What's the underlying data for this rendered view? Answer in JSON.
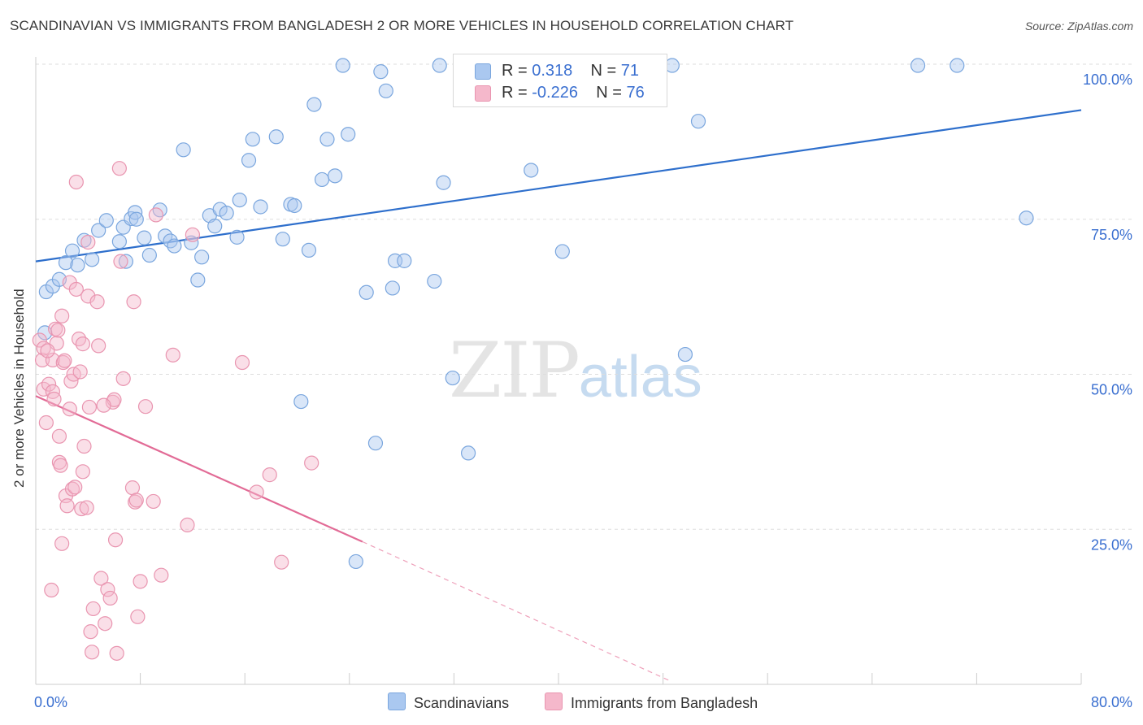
{
  "title": "SCANDINAVIAN VS IMMIGRANTS FROM BANGLADESH 2 OR MORE VEHICLES IN HOUSEHOLD CORRELATION CHART",
  "source": "Source: ZipAtlas.com",
  "watermark": {
    "zip": "ZIP",
    "atlas": "atlas"
  },
  "legend_top": [
    {
      "r_label": "R = ",
      "r_value": "0.318",
      "n_label": "N = ",
      "n_value": "71",
      "color": "#aac8f0"
    },
    {
      "r_label": "R = ",
      "r_value": "-0.226",
      "n_label": "N = ",
      "n_value": "76",
      "color": "#f5b8cb"
    }
  ],
  "legend_bottom": [
    {
      "label": "Scandinavians",
      "color": "#aac8f0"
    },
    {
      "label": "Immigrants from Bangladesh",
      "color": "#f5b8cb"
    }
  ],
  "chart_data": {
    "type": "scatter",
    "title": "SCANDINAVIAN VS IMMIGRANTS FROM BANGLADESH 2 OR MORE VEHICLES IN HOUSEHOLD CORRELATION CHART",
    "xlabel": "",
    "ylabel": "2 or more Vehicles in Household",
    "xlim": [
      0,
      80
    ],
    "ylim": [
      0,
      102
    ],
    "x_tick_labels": [
      "0.0%",
      "80.0%"
    ],
    "y_tick_labels": [
      "100.0%",
      "75.0%",
      "50.0%",
      "25.0%"
    ],
    "y_ticks": [
      100,
      75,
      50,
      25
    ],
    "grid": true,
    "legend_position": "bottom",
    "series": [
      {
        "name": "Scandinavians",
        "color": "#aac8f0",
        "stroke": "#7aa6de",
        "trend": {
          "x": [
            0,
            80
          ],
          "y": [
            68.2,
            92.6
          ],
          "color": "#2e6fcc"
        },
        "points": [
          [
            0.7,
            56.7
          ],
          [
            0.8,
            63.3
          ],
          [
            1.3,
            64.2
          ],
          [
            1.8,
            65.3
          ],
          [
            2.3,
            68.0
          ],
          [
            2.8,
            69.9
          ],
          [
            3.2,
            67.6
          ],
          [
            3.7,
            71.6
          ],
          [
            4.3,
            68.5
          ],
          [
            4.8,
            73.2
          ],
          [
            5.4,
            74.8
          ],
          [
            6.4,
            71.4
          ],
          [
            6.9,
            68.2
          ],
          [
            6.7,
            73.7
          ],
          [
            7.3,
            75.1
          ],
          [
            7.6,
            76.1
          ],
          [
            7.7,
            75.0
          ],
          [
            8.3,
            72.0
          ],
          [
            8.7,
            69.2
          ],
          [
            9.5,
            76.5
          ],
          [
            9.9,
            72.3
          ],
          [
            10.3,
            71.5
          ],
          [
            10.6,
            70.7
          ],
          [
            11.3,
            86.2
          ],
          [
            11.9,
            71.2
          ],
          [
            12.4,
            65.2
          ],
          [
            12.7,
            68.9
          ],
          [
            13.3,
            75.6
          ],
          [
            13.7,
            73.9
          ],
          [
            14.1,
            76.6
          ],
          [
            14.6,
            76.0
          ],
          [
            15.4,
            72.1
          ],
          [
            15.6,
            78.1
          ],
          [
            16.3,
            84.5
          ],
          [
            16.6,
            87.9
          ],
          [
            17.2,
            77.0
          ],
          [
            18.4,
            88.3
          ],
          [
            18.9,
            71.8
          ],
          [
            19.5,
            77.4
          ],
          [
            19.8,
            77.2
          ],
          [
            20.9,
            70.0
          ],
          [
            20.3,
            45.6
          ],
          [
            21.3,
            93.5
          ],
          [
            21.9,
            81.4
          ],
          [
            22.3,
            87.9
          ],
          [
            22.9,
            82.0
          ],
          [
            23.5,
            99.8
          ],
          [
            23.9,
            88.7
          ],
          [
            25.3,
            63.2
          ],
          [
            26.0,
            38.9
          ],
          [
            26.4,
            98.8
          ],
          [
            26.8,
            95.7
          ],
          [
            27.3,
            63.9
          ],
          [
            27.5,
            68.3
          ],
          [
            28.2,
            68.3
          ],
          [
            30.5,
            65.0
          ],
          [
            31.2,
            80.9
          ],
          [
            31.9,
            49.4
          ],
          [
            33.1,
            37.3
          ],
          [
            37.9,
            82.9
          ],
          [
            40.3,
            69.8
          ],
          [
            37.5,
            99.8
          ],
          [
            43.5,
            99.8
          ],
          [
            48.7,
            99.8
          ],
          [
            49.7,
            53.2
          ],
          [
            50.7,
            90.8
          ],
          [
            67.5,
            99.8
          ],
          [
            70.5,
            99.8
          ],
          [
            75.8,
            75.2
          ],
          [
            24.5,
            19.8
          ],
          [
            30.9,
            99.8
          ]
        ]
      },
      {
        "name": "Immigrants from Bangladesh",
        "color": "#f5b8cb",
        "stroke": "#e995b0",
        "trend": {
          "x": [
            0,
            25
          ],
          "y": [
            46.5,
            23.0
          ],
          "color": "#e26b96"
        },
        "trend_dashed": {
          "x": [
            25,
            48.5
          ],
          "y": [
            23.0,
            0.6
          ],
          "color": "#eea0ba"
        },
        "points": [
          [
            0.3,
            55.5
          ],
          [
            0.5,
            52.3
          ],
          [
            0.6,
            54.2
          ],
          [
            0.6,
            47.6
          ],
          [
            0.8,
            42.2
          ],
          [
            1.0,
            48.4
          ],
          [
            1.2,
            15.2
          ],
          [
            1.3,
            47.2
          ],
          [
            1.3,
            52.3
          ],
          [
            1.5,
            57.3
          ],
          [
            1.6,
            55.0
          ],
          [
            1.7,
            57.1
          ],
          [
            1.8,
            40.0
          ],
          [
            1.8,
            35.8
          ],
          [
            1.9,
            35.3
          ],
          [
            2.0,
            22.7
          ],
          [
            2.0,
            59.4
          ],
          [
            2.1,
            51.9
          ],
          [
            2.3,
            30.4
          ],
          [
            2.4,
            28.8
          ],
          [
            2.6,
            64.8
          ],
          [
            2.6,
            44.4
          ],
          [
            2.7,
            48.9
          ],
          [
            2.8,
            31.5
          ],
          [
            2.9,
            50.0
          ],
          [
            3.0,
            31.8
          ],
          [
            3.1,
            63.7
          ],
          [
            3.1,
            81.0
          ],
          [
            3.3,
            55.7
          ],
          [
            3.4,
            50.4
          ],
          [
            3.5,
            28.3
          ],
          [
            3.6,
            54.9
          ],
          [
            3.6,
            34.3
          ],
          [
            3.7,
            38.4
          ],
          [
            4.0,
            71.3
          ],
          [
            4.0,
            62.6
          ],
          [
            4.1,
            44.7
          ],
          [
            4.2,
            8.5
          ],
          [
            4.3,
            5.2
          ],
          [
            4.4,
            12.2
          ],
          [
            4.7,
            61.7
          ],
          [
            4.8,
            54.6
          ],
          [
            5.0,
            17.1
          ],
          [
            5.3,
            9.8
          ],
          [
            5.5,
            15.3
          ],
          [
            5.7,
            13.9
          ],
          [
            5.9,
            45.5
          ],
          [
            6.0,
            45.9
          ],
          [
            6.1,
            23.3
          ],
          [
            6.2,
            5.0
          ],
          [
            6.4,
            83.2
          ],
          [
            6.5,
            68.2
          ],
          [
            6.7,
            49.3
          ],
          [
            7.4,
            31.7
          ],
          [
            7.5,
            61.7
          ],
          [
            7.6,
            29.4
          ],
          [
            7.7,
            29.7
          ],
          [
            7.8,
            10.9
          ],
          [
            8.0,
            16.6
          ],
          [
            9.0,
            29.5
          ],
          [
            9.2,
            75.7
          ],
          [
            9.6,
            17.6
          ],
          [
            10.5,
            53.1
          ],
          [
            11.6,
            25.7
          ],
          [
            12.0,
            72.5
          ],
          [
            15.8,
            51.9
          ],
          [
            16.9,
            31.0
          ],
          [
            17.9,
            33.8
          ],
          [
            18.8,
            19.7
          ],
          [
            21.1,
            35.7
          ],
          [
            3.9,
            28.5
          ],
          [
            2.2,
            52.2
          ],
          [
            1.4,
            46.0
          ],
          [
            0.9,
            53.8
          ],
          [
            8.4,
            44.8
          ],
          [
            5.2,
            45.0
          ]
        ]
      }
    ]
  }
}
